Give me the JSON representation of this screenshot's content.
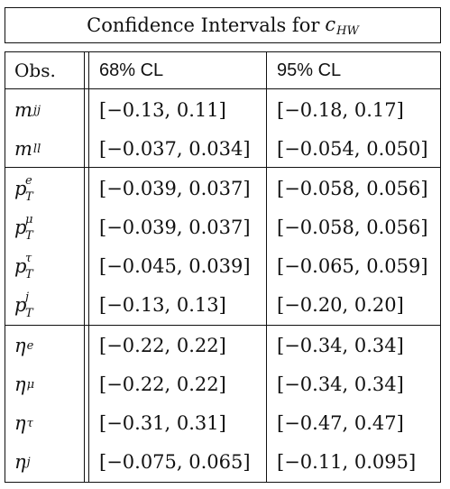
{
  "title": {
    "text": "Confidence Intervals for",
    "symbol_base": "c",
    "symbol_sub": "HW"
  },
  "header": {
    "obs": "Obs.",
    "cl68": "68% CL",
    "cl95": "95% CL"
  },
  "rows": [
    {
      "obs_base": "m",
      "obs_sup": "",
      "obs_sub": "jj",
      "cl68": "[−0.13, 0.11]",
      "cl95": "[−0.18, 0.17]"
    },
    {
      "obs_base": "m",
      "obs_sup": "",
      "obs_sub": "ll",
      "cl68": "[−0.037, 0.034]",
      "cl95": "[−0.054, 0.050]"
    },
    {
      "obs_base": "p",
      "obs_sup": "e",
      "obs_sub": "T",
      "cl68": "[−0.039, 0.037]",
      "cl95": "[−0.058, 0.056]"
    },
    {
      "obs_base": "p",
      "obs_sup": "μ",
      "obs_sub": "T",
      "cl68": "[−0.039, 0.037]",
      "cl95": "[−0.058, 0.056]"
    },
    {
      "obs_base": "p",
      "obs_sup": "τ",
      "obs_sub": "T",
      "cl68": "[−0.045, 0.039]",
      "cl95": "[−0.065, 0.059]"
    },
    {
      "obs_base": "p",
      "obs_sup": "j",
      "obs_sub": "T",
      "cl68": "[−0.13, 0.13]",
      "cl95": "[−0.20, 0.20]"
    },
    {
      "obs_base": "η",
      "obs_sup": "e",
      "obs_sub": "",
      "cl68": "[−0.22, 0.22]",
      "cl95": "[−0.34, 0.34]"
    },
    {
      "obs_base": "η",
      "obs_sup": "μ",
      "obs_sub": "",
      "cl68": "[−0.22, 0.22]",
      "cl95": "[−0.34, 0.34]"
    },
    {
      "obs_base": "η",
      "obs_sup": "τ",
      "obs_sub": "",
      "cl68": "[−0.31, 0.31]",
      "cl95": "[−0.47, 0.47]"
    },
    {
      "obs_base": "η",
      "obs_sup": "j",
      "obs_sub": "",
      "cl68": "[−0.075, 0.065]",
      "cl95": "[−0.11, 0.095]"
    }
  ]
}
